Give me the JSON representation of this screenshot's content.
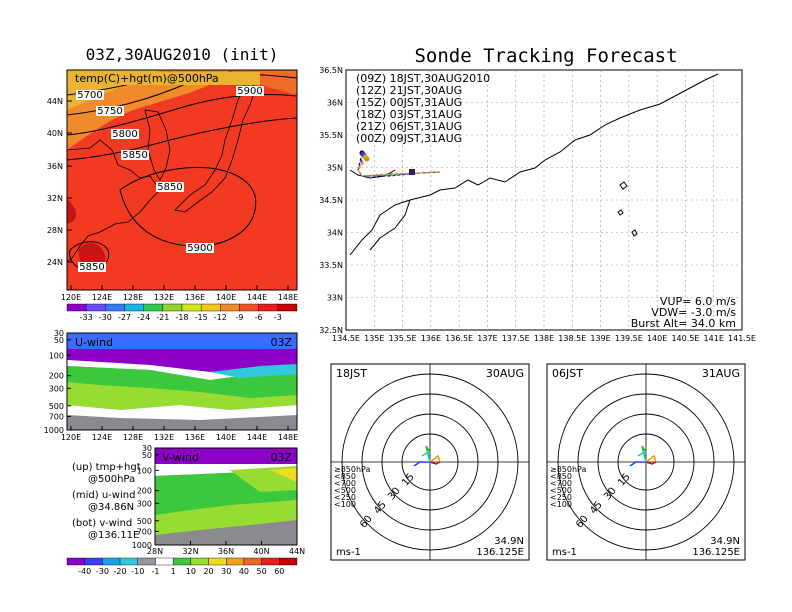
{
  "left_title": "03Z,30AUG2010 (init)",
  "right_title": "Sonde Tracking Forecast",
  "map_panel": {
    "label": "temp(C)+hgt(m)@500hPa",
    "x_ticks": [
      "120E",
      "124E",
      "128E",
      "132E",
      "136E",
      "140E",
      "144E",
      "148E"
    ],
    "y_ticks": [
      "44N",
      "40N",
      "36N",
      "32N",
      "28N",
      "24N"
    ],
    "contour_labels": [
      "5700",
      "5750",
      "5800",
      "5850",
      "5850",
      "5900",
      "5900",
      "5850"
    ],
    "colorbar": [
      "-33",
      "-30",
      "-27",
      "-24",
      "-21",
      "-18",
      "-15",
      "-12",
      "-9",
      "-6",
      "-3"
    ],
    "colorbar_colors": [
      "#8c00c8",
      "#6a4cff",
      "#3c78ff",
      "#19b4e6",
      "#32c850",
      "#96d232",
      "#d2e61e",
      "#f0c81e",
      "#f08c28",
      "#f05028",
      "#e61e1e",
      "#c80000"
    ]
  },
  "u_panel": {
    "label": "U-wind",
    "time": "03Z",
    "y_ticks": [
      "30",
      "50",
      "100",
      "200",
      "300",
      "500",
      "700",
      "1000"
    ],
    "x_ticks": [
      "120E",
      "124E",
      "128E",
      "132E",
      "136E",
      "140E",
      "144E",
      "148E"
    ]
  },
  "v_panel": {
    "label": "V-wind",
    "time": "03Z",
    "y_ticks": [
      "30",
      "50",
      "100",
      "200",
      "300",
      "500",
      "700",
      "1000"
    ],
    "x_ticks": [
      "28N",
      "32N",
      "36N",
      "40N",
      "44N"
    ],
    "colorbar": [
      "-40",
      "-30",
      "-20",
      "-10",
      "-1",
      "1",
      "10",
      "20",
      "30",
      "40",
      "50",
      "60"
    ],
    "colorbar_colors": [
      "#8c00c8",
      "#3c3cff",
      "#19a0e6",
      "#32c8dc",
      "#9696a0",
      "#ffffff",
      "#3cc83c",
      "#96dc32",
      "#f0dc1e",
      "#f0a01e",
      "#f06428",
      "#e61e1e",
      "#c80000"
    ]
  },
  "legend_notes": [
    {
      "a": "(up) tmp+hgt",
      "b": "@500hPa"
    },
    {
      "a": "(mid) u-wind",
      "b": "@34.86N"
    },
    {
      "a": "(bot) v-wind",
      "b": "@136.11E"
    }
  ],
  "track_panel": {
    "x_ticks": [
      "134.5E",
      "135E",
      "135.5E",
      "136E",
      "136.5E",
      "137E",
      "137.5E",
      "138E",
      "138.5E",
      "139E",
      "139.5E",
      "140E",
      "140.5E",
      "141E",
      "141.5E"
    ],
    "y_ticks": [
      "36.5N",
      "36N",
      "35.5N",
      "35N",
      "34.5N",
      "34N",
      "33.5N",
      "33N",
      "32.5N"
    ],
    "launches": [
      {
        "text": "(09Z) 18JST,30AUG2010",
        "color": "#000000"
      },
      {
        "text": "(12Z) 21JST,30AUG",
        "color": "#a000c8"
      },
      {
        "text": "(15Z) 00JST,31AUG",
        "color": "#2040ff"
      },
      {
        "text": "(18Z) 03JST,31AUG",
        "color": "#20c020"
      },
      {
        "text": "(21Z) 06JST,31AUG",
        "color": "#f0c800"
      },
      {
        "text": "(00Z) 09JST,31AUG",
        "color": "#f08020"
      }
    ],
    "params": [
      "VUP= 6.0 m/s",
      "VDW= -3.0 m/s",
      "Burst Alt= 34.0 km"
    ]
  },
  "hodographs": [
    {
      "time": "18JST",
      "date": "30AUG",
      "lat": "34.9N",
      "lon": "136.125E",
      "unit": "ms-1"
    },
    {
      "time": "06JST",
      "date": "31AUG",
      "lat": "34.9N",
      "lon": "136.125E",
      "unit": "ms-1"
    }
  ],
  "hodo_rings": [
    "15",
    "30",
    "45",
    "60"
  ],
  "hodo_levels": [
    {
      "t": "≥850hPa",
      "c": "#e00000"
    },
    {
      "t": "<850",
      "c": "#f0a000"
    },
    {
      "t": "<700",
      "c": "#c8c800"
    },
    {
      "t": "<500",
      "c": "#20c020"
    },
    {
      "t": "<250",
      "c": "#20c8c8"
    },
    {
      "t": "<100",
      "c": "#2040ff"
    }
  ]
}
